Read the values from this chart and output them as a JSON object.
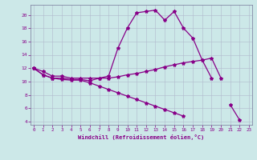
{
  "xlabel": "Windchill (Refroidissement éolien,°C)",
  "x_ticks": [
    0,
    1,
    2,
    3,
    4,
    5,
    6,
    7,
    8,
    9,
    10,
    11,
    12,
    13,
    14,
    15,
    16,
    17,
    18,
    19,
    20,
    21,
    22,
    23
  ],
  "ylim": [
    3.5,
    21.5
  ],
  "yticks": [
    4,
    6,
    8,
    10,
    12,
    14,
    16,
    18,
    20
  ],
  "xlim": [
    -0.3,
    23.3
  ],
  "bg_color": "#cce8e8",
  "line_color": "#880088",
  "grid_color": "#b0b8cc",
  "line1_y": [
    12,
    11,
    10.5,
    10.5,
    10.3,
    10.3,
    10.1,
    10.5,
    10.8,
    15.0,
    18.0,
    20.3,
    20.5,
    20.7,
    19.2,
    20.5,
    18.0,
    16.5,
    13.2,
    10.5,
    null,
    null,
    null,
    null
  ],
  "line2_y": [
    12,
    11.5,
    10.8,
    10.8,
    10.5,
    10.5,
    10.5,
    10.5,
    10.5,
    10.7,
    11.0,
    11.2,
    11.5,
    11.8,
    12.2,
    12.5,
    12.8,
    13.0,
    13.2,
    13.5,
    10.5,
    null,
    null,
    null
  ],
  "line3_y": [
    12,
    11.0,
    10.5,
    10.3,
    10.2,
    10.2,
    9.8,
    9.3,
    8.8,
    8.3,
    7.8,
    7.3,
    6.8,
    6.3,
    5.8,
    5.3,
    4.8,
    null,
    null,
    null,
    null,
    6.5,
    4.2,
    null
  ]
}
